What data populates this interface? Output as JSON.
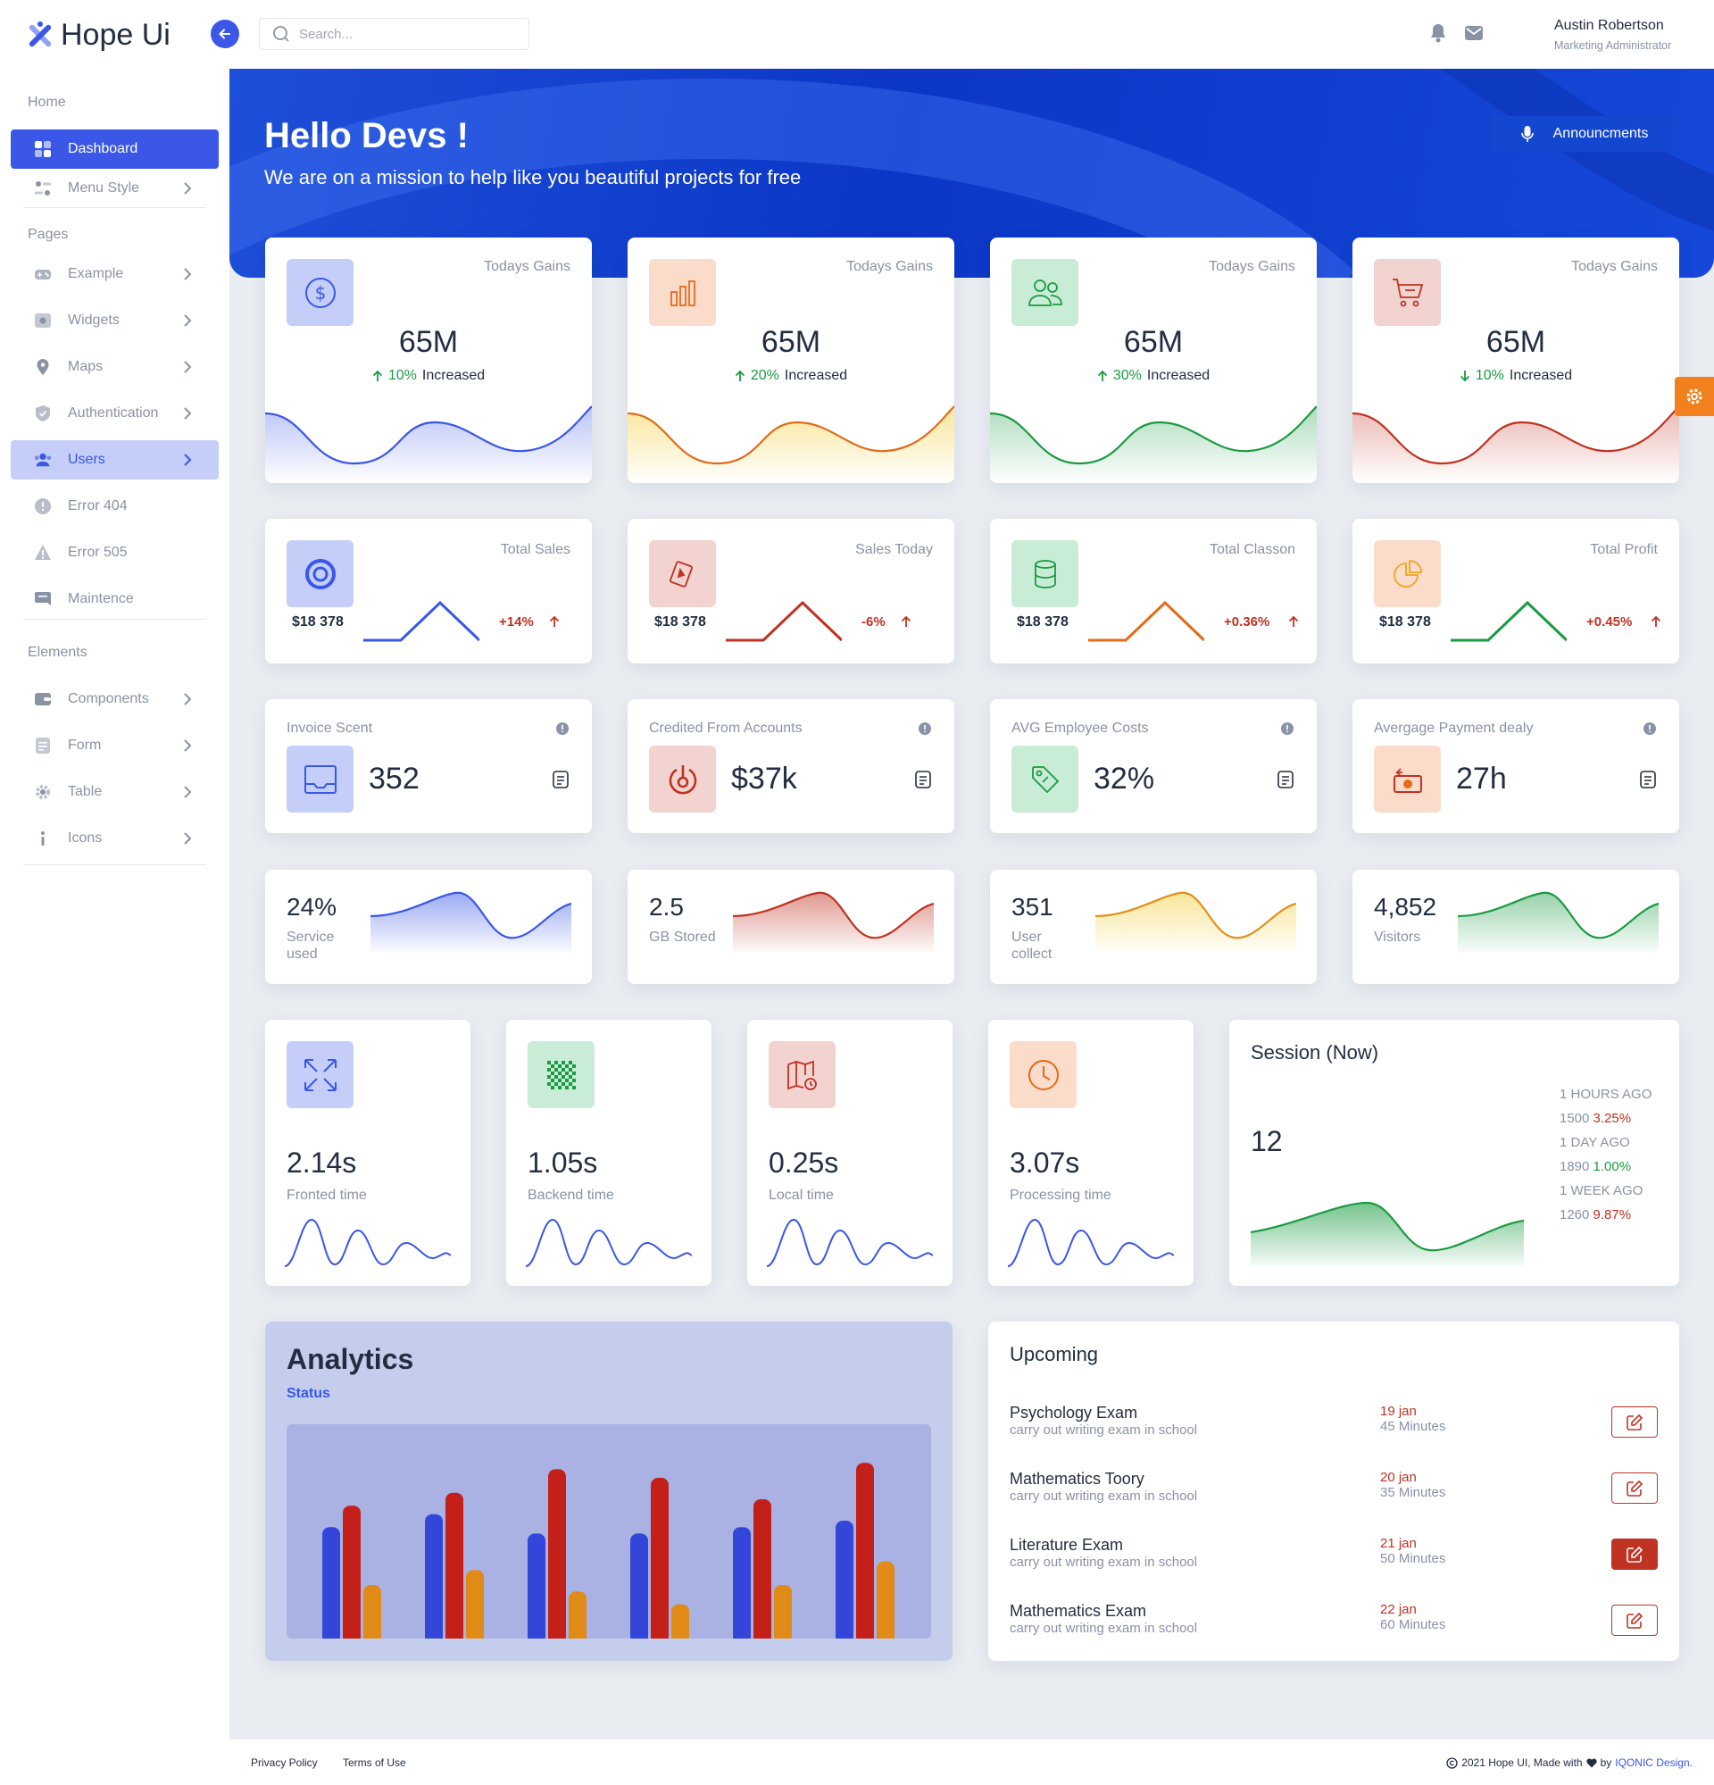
{
  "app": {
    "name": "Hope Ui",
    "accent": "#3a57e8"
  },
  "search": {
    "placeholder": "Search..."
  },
  "user": {
    "name": "Austin Robertson",
    "role": "Marketing Administrator"
  },
  "sidebar": {
    "sections": [
      "Home",
      "Pages",
      "Elements"
    ],
    "items": [
      {
        "label": "Dashboard",
        "icon": "grid-icon"
      },
      {
        "label": "Menu Style",
        "icon": "toggle-icon"
      },
      {
        "label": "Example",
        "icon": "gamepad-icon"
      },
      {
        "label": "Widgets",
        "icon": "widget-icon"
      },
      {
        "label": "Maps",
        "icon": "map-pin-icon"
      },
      {
        "label": "Authentication",
        "icon": "shield-icon"
      },
      {
        "label": "Users",
        "icon": "users-icon"
      },
      {
        "label": "Error 404",
        "icon": "alert-icon"
      },
      {
        "label": "Error 505",
        "icon": "warning-icon"
      },
      {
        "label": "Maintence",
        "icon": "chat-icon"
      },
      {
        "label": "Components",
        "icon": "wallet-icon"
      },
      {
        "label": "Form",
        "icon": "document-icon"
      },
      {
        "label": "Table",
        "icon": "gear-icon"
      },
      {
        "label": "Icons",
        "icon": "info-icon"
      }
    ]
  },
  "hero": {
    "title": "Hello Devs !",
    "subtitle": "We are on a mission to help like you beautiful projects for free",
    "button": "Announcments"
  },
  "gains": [
    {
      "label": "Todays Gains",
      "value": "65M",
      "pct": "10%",
      "text": "Increased",
      "dir": "up",
      "color": "#3a57e8"
    },
    {
      "label": "Todays Gains",
      "value": "65M",
      "pct": "20%",
      "text": "Increased",
      "dir": "up",
      "color": "#e36b19"
    },
    {
      "label": "Todays Gains",
      "value": "65M",
      "pct": "30%",
      "text": "Increased",
      "dir": "up",
      "color": "#1a9b42"
    },
    {
      "label": "Todays Gains",
      "value": "65M",
      "pct": "10%",
      "text": "Increased",
      "dir": "down",
      "color": "#c03221"
    }
  ],
  "sales": [
    {
      "label": "Total Sales",
      "value": "$18 378",
      "pct": "+14%",
      "color": "#3a57e8"
    },
    {
      "label": "Sales Today",
      "value": "$18 378",
      "pct": "-6%",
      "color": "#c03221"
    },
    {
      "label": "Total Classon",
      "value": "$18 378",
      "pct": "+0.36%",
      "color": "#e36b19"
    },
    {
      "label": "Total Profit",
      "value": "$18 378",
      "pct": "+0.45%",
      "color": "#1a9b42"
    }
  ],
  "metrics": [
    {
      "label": "Invoice Scent",
      "value": "352"
    },
    {
      "label": "Credited From Accounts",
      "value": "$37k"
    },
    {
      "label": "AVG Employee Costs",
      "value": "32%"
    },
    {
      "label": "Avergage Payment dealy",
      "value": "27h"
    }
  ],
  "stats": [
    {
      "value": "24%",
      "label": "Service used",
      "color": "#3a57e8"
    },
    {
      "value": "2.5",
      "label": "GB Stored",
      "color": "#c03221"
    },
    {
      "value": "351",
      "label": "User collect",
      "color": "#f2a41d"
    },
    {
      "value": "4,852",
      "label": "Visitors",
      "color": "#1a9b42"
    }
  ],
  "times": [
    {
      "value": "2.14s",
      "label": "Fronted time"
    },
    {
      "value": "1.05s",
      "label": "Backend time"
    },
    {
      "value": "0.25s",
      "label": "Local time"
    },
    {
      "value": "3.07s",
      "label": "Processing time"
    }
  ],
  "session": {
    "title": "Session (Now)",
    "value": "12",
    "rows": [
      {
        "ago": "1 HOURS AGO",
        "count": "1500",
        "pct": "3.25%",
        "color": "#c03221"
      },
      {
        "ago": "1 DAY AGO",
        "count": "1890",
        "pct": "1.00%",
        "color": "#1a9b42"
      },
      {
        "ago": "1 WEEK AGO",
        "count": "1260",
        "pct": "9.87%",
        "color": "#c03221"
      }
    ]
  },
  "analytics": {
    "title": "Analytics",
    "subtitle": "Status"
  },
  "chart_data": {
    "type": "bar",
    "title": "Analytics",
    "categories": [
      "1",
      "2",
      "3",
      "4",
      "5",
      "6"
    ],
    "series": [
      {
        "color": "#3346d9",
        "values": [
          52,
          58,
          49,
          49,
          52,
          55
        ]
      },
      {
        "color": "#c3201a",
        "values": [
          62,
          68,
          79,
          75,
          65,
          82
        ]
      },
      {
        "color": "#e08a18",
        "values": [
          25,
          32,
          22,
          16,
          25,
          36
        ]
      }
    ],
    "ylim": [
      0,
      100
    ]
  },
  "upcoming": {
    "title": "Upcoming",
    "items": [
      {
        "title": "Psychology Exam",
        "sub": "carry out writing exam in school",
        "date": "19 jan",
        "dur": "45 Minutes",
        "filled": false
      },
      {
        "title": "Mathematics Toory",
        "sub": "carry out writing exam in school",
        "date": "20 jan",
        "dur": "35 Minutes",
        "filled": false
      },
      {
        "title": "Literature Exam",
        "sub": "carry out writing exam in school",
        "date": "21 jan",
        "dur": "50 Minutes",
        "filled": true
      },
      {
        "title": "Mathematics Exam",
        "sub": "carry out writing exam in school",
        "date": "22 jan",
        "dur": "60 Minutes",
        "filled": false
      }
    ]
  },
  "footer": {
    "privacy": "Privacy Policy",
    "terms": "Terms of Use",
    "copy": "2021 Hope UI, Made with",
    "by": "by",
    "brand": "IQONIC Design."
  }
}
